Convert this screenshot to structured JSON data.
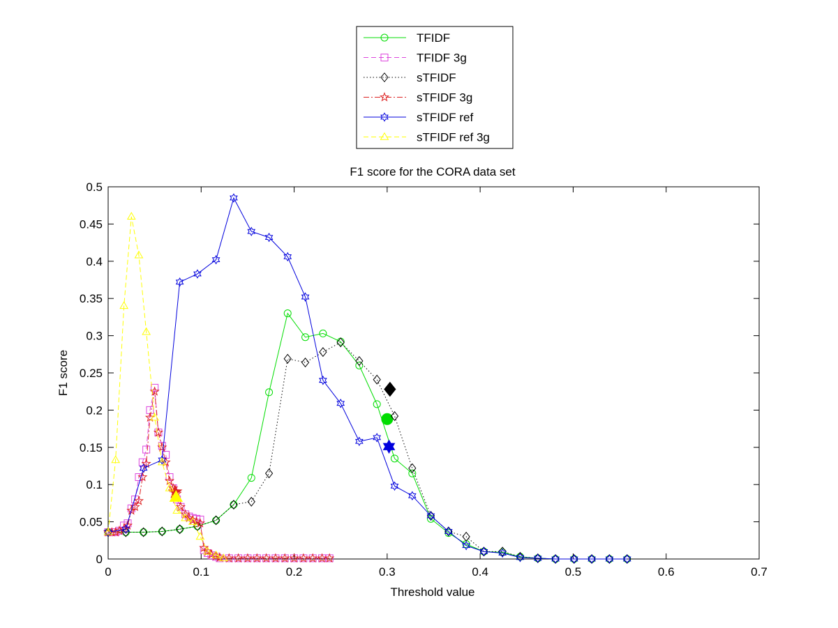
{
  "chart_data": {
    "type": "line",
    "title": "F1 score for the CORA data set",
    "xlabel": "Threshold value",
    "ylabel": "F1 score",
    "xlim": [
      0,
      0.7
    ],
    "ylim": [
      0,
      0.5
    ],
    "xticks": [
      0,
      0.1,
      0.2,
      0.3,
      0.4,
      0.5,
      0.6,
      0.7
    ],
    "yticks": [
      0,
      0.05,
      0.1,
      0.15,
      0.2,
      0.25,
      0.3,
      0.35,
      0.4,
      0.45,
      0.5
    ],
    "xtick_labels": [
      "0",
      "0.1",
      "0.2",
      "0.3",
      "0.4",
      "0.5",
      "0.6",
      "0.7"
    ],
    "ytick_labels": [
      "0",
      "0.05",
      "0.1",
      "0.15",
      "0.2",
      "0.25",
      "0.3",
      "0.35",
      "0.4",
      "0.45",
      "0.5"
    ],
    "grid": false,
    "legend_position": "top-center",
    "series": [
      {
        "name": "TFIDF",
        "color": "#00dd00",
        "line": "solid",
        "marker": "circle",
        "x": [
          0,
          0.019,
          0.038,
          0.058,
          0.077,
          0.096,
          0.116,
          0.135,
          0.154,
          0.173,
          0.193,
          0.212,
          0.231,
          0.25,
          0.27,
          0.289,
          0.308,
          0.327,
          0.347,
          0.366,
          0.385,
          0.404,
          0.424,
          0.443,
          0.462,
          0.481,
          0.501,
          0.52,
          0.539,
          0.558
        ],
        "y": [
          0.036,
          0.036,
          0.036,
          0.037,
          0.04,
          0.044,
          0.052,
          0.073,
          0.109,
          0.224,
          0.33,
          0.298,
          0.303,
          0.292,
          0.26,
          0.208,
          0.135,
          0.115,
          0.054,
          0.035,
          0.02,
          0.01,
          0.009,
          0.003,
          0.001,
          0.0,
          0.0,
          0.0,
          0.0,
          0.0
        ],
        "highlight": {
          "x": 0.3,
          "y": 0.188,
          "marker": "circle"
        }
      },
      {
        "name": "TFIDF 3g",
        "color": "#dd44dd",
        "line": "dashed",
        "marker": "square",
        "x": [
          0,
          0.004,
          0.008,
          0.012,
          0.017,
          0.021,
          0.025,
          0.029,
          0.033,
          0.037,
          0.041,
          0.045,
          0.05,
          0.054,
          0.058,
          0.062,
          0.066,
          0.07,
          0.074,
          0.078,
          0.083,
          0.087,
          0.091,
          0.095,
          0.099,
          0.103,
          0.107,
          0.111,
          0.116,
          0.12,
          0.13,
          0.14,
          0.15,
          0.16,
          0.17,
          0.18,
          0.19,
          0.2,
          0.21,
          0.22,
          0.23,
          0.238
        ],
        "y": [
          0.036,
          0.036,
          0.036,
          0.038,
          0.045,
          0.048,
          0.068,
          0.08,
          0.11,
          0.13,
          0.147,
          0.2,
          0.23,
          0.17,
          0.152,
          0.14,
          0.11,
          0.095,
          0.08,
          0.07,
          0.06,
          0.057,
          0.055,
          0.054,
          0.053,
          0.012,
          0.008,
          0.005,
          0.003,
          0.001,
          0.001,
          0.001,
          0.001,
          0.001,
          0.001,
          0.001,
          0.001,
          0.001,
          0.001,
          0.001,
          0.001,
          0.001
        ]
      },
      {
        "name": "sTFIDF",
        "color": "#000000",
        "line": "dotted",
        "marker": "diamond",
        "x": [
          0,
          0.019,
          0.038,
          0.058,
          0.077,
          0.096,
          0.116,
          0.135,
          0.154,
          0.173,
          0.193,
          0.212,
          0.231,
          0.25,
          0.27,
          0.289,
          0.308,
          0.327,
          0.347,
          0.366,
          0.385,
          0.404,
          0.424,
          0.443,
          0.462,
          0.481,
          0.501,
          0.52,
          0.539,
          0.558
        ],
        "y": [
          0.036,
          0.036,
          0.036,
          0.037,
          0.04,
          0.044,
          0.052,
          0.073,
          0.077,
          0.115,
          0.269,
          0.264,
          0.278,
          0.291,
          0.266,
          0.241,
          0.192,
          0.122,
          0.058,
          0.037,
          0.03,
          0.01,
          0.01,
          0.003,
          0.001,
          0.0,
          0.0,
          0.0,
          0.0,
          0.0
        ],
        "highlight": {
          "x": 0.303,
          "y": 0.228,
          "marker": "diamond"
        }
      },
      {
        "name": "sTFIDF 3g",
        "color": "#dd2222",
        "line": "dashdot",
        "marker": "pentagram",
        "x": [
          0,
          0.004,
          0.008,
          0.012,
          0.017,
          0.021,
          0.025,
          0.029,
          0.033,
          0.037,
          0.041,
          0.045,
          0.05,
          0.054,
          0.058,
          0.062,
          0.066,
          0.07,
          0.074,
          0.078,
          0.083,
          0.087,
          0.091,
          0.095,
          0.099,
          0.103,
          0.107,
          0.111,
          0.116,
          0.12,
          0.13,
          0.14,
          0.15,
          0.16,
          0.17,
          0.18,
          0.19,
          0.2,
          0.21,
          0.22,
          0.23,
          0.238
        ],
        "y": [
          0.036,
          0.036,
          0.036,
          0.038,
          0.04,
          0.045,
          0.065,
          0.07,
          0.078,
          0.11,
          0.128,
          0.19,
          0.225,
          0.17,
          0.15,
          0.13,
          0.105,
          0.095,
          0.088,
          0.07,
          0.06,
          0.055,
          0.052,
          0.05,
          0.048,
          0.015,
          0.01,
          0.006,
          0.004,
          0.002,
          0.001,
          0.001,
          0.001,
          0.001,
          0.001,
          0.001,
          0.001,
          0.001,
          0.001,
          0.001,
          0.001,
          0.001
        ],
        "highlight": {
          "x": 0.072,
          "y": 0.09,
          "marker": "pentagram"
        }
      },
      {
        "name": "sTFIDF ref",
        "color": "#0000dd",
        "line": "solid",
        "marker": "hexagram",
        "x": [
          0,
          0.019,
          0.038,
          0.058,
          0.077,
          0.096,
          0.116,
          0.135,
          0.154,
          0.173,
          0.193,
          0.212,
          0.231,
          0.25,
          0.27,
          0.289,
          0.308,
          0.327,
          0.347,
          0.366,
          0.385,
          0.404,
          0.424,
          0.443,
          0.462,
          0.481,
          0.501,
          0.52,
          0.539,
          0.558
        ],
        "y": [
          0.036,
          0.04,
          0.122,
          0.133,
          0.372,
          0.383,
          0.402,
          0.485,
          0.44,
          0.432,
          0.406,
          0.352,
          0.24,
          0.209,
          0.158,
          0.163,
          0.098,
          0.085,
          0.058,
          0.037,
          0.018,
          0.01,
          0.008,
          0.002,
          0.001,
          0.0,
          0.0,
          0.0,
          0.0,
          0.0
        ],
        "highlight": {
          "x": 0.302,
          "y": 0.151,
          "marker": "hexagram"
        }
      },
      {
        "name": "sTFIDF ref 3g",
        "color": "#ffff00",
        "line": "dashed",
        "marker": "triangle",
        "x": [
          0,
          0.008,
          0.017,
          0.025,
          0.033,
          0.041,
          0.05,
          0.058,
          0.066,
          0.074,
          0.083,
          0.091,
          0.099,
          0.107,
          0.116,
          0.124
        ],
        "y": [
          0.036,
          0.133,
          0.34,
          0.46,
          0.408,
          0.305,
          0.19,
          0.13,
          0.095,
          0.065,
          0.055,
          0.05,
          0.03,
          0.01,
          0.005,
          0.001
        ],
        "highlight": {
          "x": 0.073,
          "y": 0.083,
          "marker": "triangle"
        }
      }
    ]
  }
}
